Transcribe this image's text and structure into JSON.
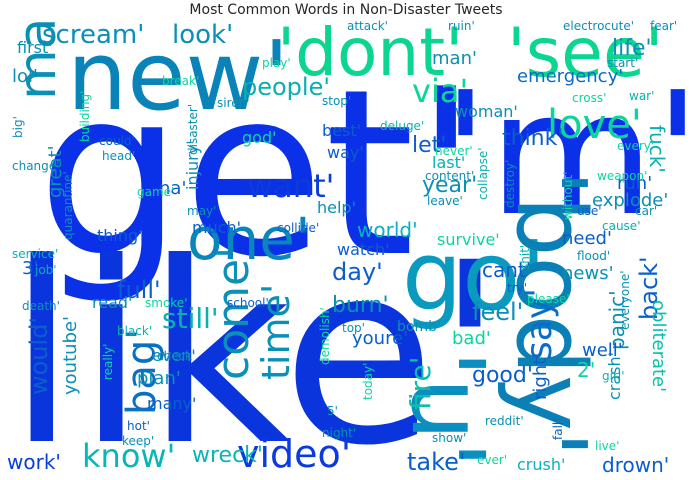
{
  "title": "Most Common Words in Non-Disaster Tweets",
  "palette": {
    "blue": "#0a2ee6",
    "darkblue": "#0d39d9",
    "teal": "#0a8fb5",
    "green": "#0ad69a",
    "cyan": "#0ab0c8",
    "lightgreen": "#00d4a6"
  },
  "words": [
    {
      "text": "get'",
      "color": "#0a30e8"
    },
    {
      "text": "like'",
      "color": "#0b35dc"
    },
    {
      "text": "'m'",
      "color": "#0a30e8"
    },
    {
      "text": "new'",
      "color": "#0a84b8"
    },
    {
      "text": "'dont'",
      "color": "#0ad68f"
    },
    {
      "text": "'see'",
      "color": "#0ad68f"
    },
    {
      "text": "go'",
      "color": "#0a9abf"
    },
    {
      "text": "'body'",
      "color": "#0a80b7"
    },
    {
      "text": "'u'",
      "color": "#0a8fc0"
    },
    {
      "text": "make'",
      "color": "#0a8fb5"
    },
    {
      "text": "one'",
      "color": "#0a86bd"
    },
    {
      "text": "love'",
      "color": "#0ad69a"
    },
    {
      "text": "come'",
      "color": "#0a90b9"
    },
    {
      "text": "time'",
      "color": "#0a8fb5"
    },
    {
      "text": "say'",
      "color": "#0a6ec8"
    },
    {
      "text": "bag'",
      "color": "#0a70c2"
    },
    {
      "text": "video'",
      "color": "#0b3ae0"
    },
    {
      "text": "know'",
      "color": "#0ab5b5"
    },
    {
      "text": "want'",
      "color": "#0a3cd8"
    },
    {
      "text": "scream'",
      "color": "#0a8fb5"
    },
    {
      "text": "look'",
      "color": "#0a8fb5"
    },
    {
      "text": "people'",
      "color": "#0ab0b0"
    },
    {
      "text": "via'",
      "color": "#0ad69a"
    },
    {
      "text": "life'",
      "color": "#0a8fb5"
    },
    {
      "text": "emergency'",
      "color": "#0a6cc4"
    },
    {
      "text": "man'",
      "color": "#0a8fb5"
    },
    {
      "text": "first'",
      "color": "#0a8fb5"
    },
    {
      "text": "lol'",
      "color": "#0a8fb5"
    },
    {
      "text": "think'",
      "color": "#0a5ecc"
    },
    {
      "text": "fuck'",
      "color": "#0ab0b0"
    },
    {
      "text": "back'",
      "color": "#0a5ecc"
    },
    {
      "text": "panic'",
      "color": "#0a8fb5"
    },
    {
      "text": "fire'",
      "color": "#0ac0ab"
    },
    {
      "text": "would'",
      "color": "#0a5ecc"
    },
    {
      "text": "youtube'",
      "color": "#0a8fb5"
    },
    {
      "text": "still'",
      "color": "#0ab0b0"
    },
    {
      "text": "full'",
      "color": "#0a5ecc"
    },
    {
      "text": "day'",
      "color": "#0a5ecc"
    },
    {
      "text": "burn'",
      "color": "#0a8fb5"
    },
    {
      "text": "feel'",
      "color": "#0a8fb5"
    },
    {
      "text": "good'",
      "color": "#0a5ecc"
    },
    {
      "text": "take'",
      "color": "#0a5ecc"
    },
    {
      "text": "wreck'",
      "color": "#0ab5b5"
    },
    {
      "text": "work'",
      "color": "#0a40d8"
    },
    {
      "text": "drown'",
      "color": "#0a5ecc"
    },
    {
      "text": "crush'",
      "color": "#0ab0c0"
    },
    {
      "text": "year'",
      "color": "#0a8fb5"
    },
    {
      "text": "let'",
      "color": "#0a5ecc"
    },
    {
      "text": "world'",
      "color": "#0ab0c0"
    },
    {
      "text": "need'",
      "color": "#0a5ecc"
    },
    {
      "text": "cant'",
      "color": "#0a5ecc"
    },
    {
      "text": "news'",
      "color": "#0a8fb5"
    },
    {
      "text": "explode'",
      "color": "#0a8fb5"
    },
    {
      "text": "run'",
      "color": "#0a5ecc"
    },
    {
      "text": "obliterate'",
      "color": "#0ac0ab"
    },
    {
      "text": "crash'",
      "color": "#0a8fb5"
    },
    {
      "text": "well'",
      "color": "#0a5ecc"
    },
    {
      "text": "right'",
      "color": "#0a5ecc"
    },
    {
      "text": "bad'",
      "color": "#0ad6a0"
    },
    {
      "text": "youre'",
      "color": "#0a5ecc"
    },
    {
      "text": "read'",
      "color": "#0a8fb5"
    },
    {
      "text": "plan'",
      "color": "#0a8fb5"
    },
    {
      "text": "many'",
      "color": "#0a5ecc"
    },
    {
      "text": "even'",
      "color": "#0a8fb5"
    },
    {
      "text": "watch'",
      "color": "#0a5ecc"
    },
    {
      "text": "survive'",
      "color": "#0ad6a0"
    },
    {
      "text": "help'",
      "color": "#0a8fb5"
    },
    {
      "text": "much'",
      "color": "#0a5ecc"
    },
    {
      "text": "thing'",
      "color": "#0a5ecc"
    },
    {
      "text": "injury'",
      "color": "#0a8fb5"
    },
    {
      "text": "na'",
      "color": "#0a5ecc"
    },
    {
      "text": "way'",
      "color": "#0a5ecc"
    },
    {
      "text": "best'",
      "color": "#0a5ecc"
    },
    {
      "text": "god'",
      "color": "#0ad6a0"
    },
    {
      "text": "last'",
      "color": "#0ab0b0"
    },
    {
      "text": "woman'",
      "color": "#0a8fb5"
    },
    {
      "text": "great'",
      "color": "#0a8fb5"
    },
    {
      "text": "3'",
      "color": "#0a5ecc"
    },
    {
      "text": "2'",
      "color": "#0ad6a0"
    },
    {
      "text": "bomb'",
      "color": "#0a8fb5"
    },
    {
      "text": "school'",
      "color": "#0a5ecc"
    },
    {
      "text": "top'",
      "color": "#0a8fb5"
    },
    {
      "text": "check'",
      "color": "#0a8fb5"
    },
    {
      "text": "black'",
      "color": "#0ab0b0"
    },
    {
      "text": "death'",
      "color": "#0a8fb5"
    },
    {
      "text": "hot'",
      "color": "#0a5ecc"
    },
    {
      "text": "keep'",
      "color": "#0a8fb5"
    },
    {
      "text": "night'",
      "color": "#0a8fb5"
    },
    {
      "text": "5'",
      "color": "#0a8fb5"
    },
    {
      "text": "show'",
      "color": "#0a8fb5"
    },
    {
      "text": "ever'",
      "color": "#0ad6a0"
    },
    {
      "text": "fall'",
      "color": "#0a5ecc"
    },
    {
      "text": "reddit'",
      "color": "#0a8fb5"
    },
    {
      "text": "live'",
      "color": "#0ad6a0"
    },
    {
      "text": "girl'",
      "color": "#0ab0b0"
    },
    {
      "text": "please'",
      "color": "#0ad6a0"
    },
    {
      "text": "everyone'",
      "color": "#0a8fb5"
    },
    {
      "text": "try'",
      "color": "#0a5ecc"
    },
    {
      "text": "flood'",
      "color": "#0a8fb5"
    },
    {
      "text": "shit'",
      "color": "#0ab0b0"
    },
    {
      "text": "cause'",
      "color": "#0ab0b0"
    },
    {
      "text": "car'",
      "color": "#0a8fb5"
    },
    {
      "text": "without'",
      "color": "#0ad6a0"
    },
    {
      "text": "weapon'",
      "color": "#0ad6a0"
    },
    {
      "text": "use'",
      "color": "#0a5ecc"
    },
    {
      "text": "collapse'",
      "color": "#0ab0b0"
    },
    {
      "text": "destroy'",
      "color": "#0a8fb5"
    },
    {
      "text": "leave'",
      "color": "#0a8fb5"
    },
    {
      "text": "content'",
      "color": "#0a8fb5"
    },
    {
      "text": "never'",
      "color": "#0ad6a0"
    },
    {
      "text": "every'",
      "color": "#0ad6a0"
    },
    {
      "text": "deluge'",
      "color": "#0ab0b0"
    },
    {
      "text": "cross'",
      "color": "#0ad6a0"
    },
    {
      "text": "war'",
      "color": "#0ab0b0"
    },
    {
      "text": "stop'",
      "color": "#0a8fb5"
    },
    {
      "text": "siren'",
      "color": "#0a8fb5"
    },
    {
      "text": "break'",
      "color": "#0ad6a0"
    },
    {
      "text": "building'",
      "color": "#0ad6a0"
    },
    {
      "text": "big'",
      "color": "#0a8fb5"
    },
    {
      "text": "could'",
      "color": "#0a5ecc"
    },
    {
      "text": "head'",
      "color": "#0a8fb5"
    },
    {
      "text": "change'",
      "color": "#0a8fb5"
    },
    {
      "text": "quarantine'",
      "color": "#0a8fb5"
    },
    {
      "text": "disaster'",
      "color": "#0a8fb5"
    },
    {
      "text": "game'",
      "color": "#0ad6a0"
    },
    {
      "text": "may'",
      "color": "#0a8fb5"
    },
    {
      "text": "collide'",
      "color": "#0a5ecc"
    },
    {
      "text": "service'",
      "color": "#0ab0b0"
    },
    {
      "text": "job'",
      "color": "#0ab0b0"
    },
    {
      "text": "smoke'",
      "color": "#0ad6a0"
    },
    {
      "text": "demolish'",
      "color": "#0ad6a0"
    },
    {
      "text": "today'",
      "color": "#0ad6a0"
    },
    {
      "text": "really'",
      "color": "#0ad6a0"
    },
    {
      "text": "attack'",
      "color": "#0a8fb5"
    },
    {
      "text": "electrocute'",
      "color": "#0a8fb5"
    },
    {
      "text": "fear'",
      "color": "#0a8fb5"
    },
    {
      "text": "ruin'",
      "color": "#0a8fb5"
    },
    {
      "text": "start'",
      "color": "#0a8fb5"
    },
    {
      "text": "play'",
      "color": "#0ad6a0"
    },
    {
      "text": "fear2",
      "color": "#0a8fb5"
    }
  ]
}
